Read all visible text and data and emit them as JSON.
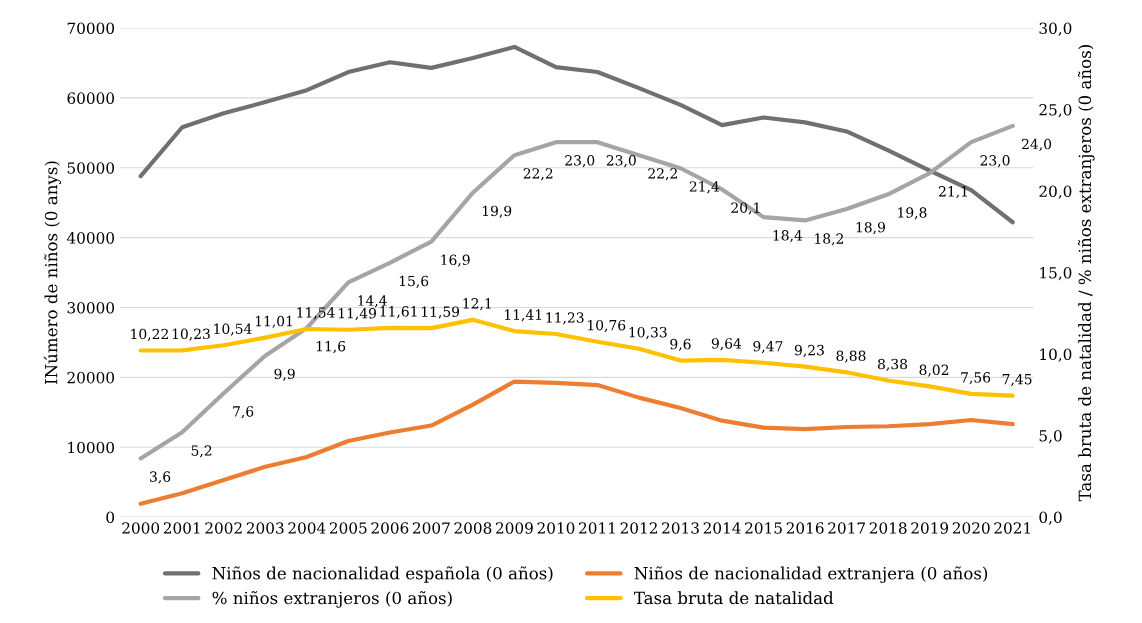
{
  "chart_data": {
    "type": "line",
    "categories": [
      "2000",
      "2001",
      "2002",
      "2003",
      "2004",
      "2005",
      "2006",
      "2007",
      "2008",
      "2009",
      "2010",
      "2011",
      "2012",
      "2013",
      "2014",
      "2015",
      "2016",
      "2017",
      "2018",
      "2019",
      "2020",
      "2021"
    ],
    "ylabel": "INúmero de niños (0 anys)",
    "y2label": "Tasa bruta de natalidad / % niños extranjeros (0 años)",
    "ylim": [
      0,
      70000
    ],
    "yticks": [
      0,
      10000,
      20000,
      30000,
      40000,
      50000,
      60000,
      70000
    ],
    "y2lim": [
      0,
      30
    ],
    "y2ticks": [
      {
        "value": 0,
        "label": "0,0"
      },
      {
        "value": 5,
        "label": "5,0"
      },
      {
        "value": 10,
        "label": "10,0"
      },
      {
        "value": 15,
        "label": "15,0"
      },
      {
        "value": 20,
        "label": "20,0"
      },
      {
        "value": 25,
        "label": "25,0"
      },
      {
        "value": 30,
        "label": "30,0"
      }
    ],
    "grid": "y",
    "legend": "bottom",
    "series": [
      {
        "name": "Niños de nacionalidad española (0 años)",
        "color": "#707070",
        "values": [
          48800,
          55800,
          57800,
          59400,
          61100,
          63700,
          65100,
          64300,
          65700,
          67300,
          64400,
          63700,
          61400,
          59000,
          56100,
          57200,
          56500,
          55200,
          52500,
          49600,
          46800,
          42200
        ]
      },
      {
        "name": "Niños de nacionalidad extranjera (0 años)",
        "color": "#ed7d31",
        "values": [
          1900,
          3400,
          5300,
          7200,
          8600,
          10900,
          12100,
          13100,
          16100,
          19400,
          19200,
          18900,
          17100,
          15600,
          13800,
          12800,
          12600,
          12900,
          13000,
          13300,
          13900,
          13300
        ]
      },
      {
        "name": "% niños extranjeros (0 años)",
        "color": "#a5a5a5",
        "axis": "y2",
        "values": [
          3.6,
          5.2,
          7.6,
          9.9,
          11.6,
          14.4,
          15.6,
          16.9,
          19.9,
          22.2,
          23.0,
          23.0,
          22.2,
          21.4,
          20.1,
          18.4,
          18.2,
          18.9,
          19.8,
          21.1,
          23.0,
          24.0
        ],
        "value_labels": [
          "3,6",
          "5,2",
          "7,6",
          "9,9",
          "11,6",
          "14,4",
          "15,6",
          "16,9",
          "19,9",
          "22,2",
          "23,0",
          "23,0",
          "22,2",
          "21,4",
          "20,1",
          "18,4",
          "18,2",
          "18,9",
          "19,8",
          "21,1",
          "23,0",
          "24,0"
        ]
      },
      {
        "name": "Tasa bruta de natalidad",
        "color": "#ffc000",
        "axis": "y2",
        "values": [
          10.22,
          10.23,
          10.54,
          11.01,
          11.54,
          11.49,
          11.61,
          11.59,
          12.1,
          11.41,
          11.23,
          10.76,
          10.33,
          9.6,
          9.64,
          9.47,
          9.23,
          8.88,
          8.38,
          8.02,
          7.56,
          7.45
        ],
        "value_labels": [
          "10,22",
          "10,23",
          "10,54",
          "11,01",
          "11,54",
          "11,49",
          "11,61",
          "11,59",
          "12,1",
          "11,41",
          "11,23",
          "10,76",
          "10,33",
          "9,6",
          "9,64",
          "9,47",
          "9,23",
          "8,88",
          "8,38",
          "8,02",
          "7,56",
          "7,45"
        ]
      }
    ]
  }
}
